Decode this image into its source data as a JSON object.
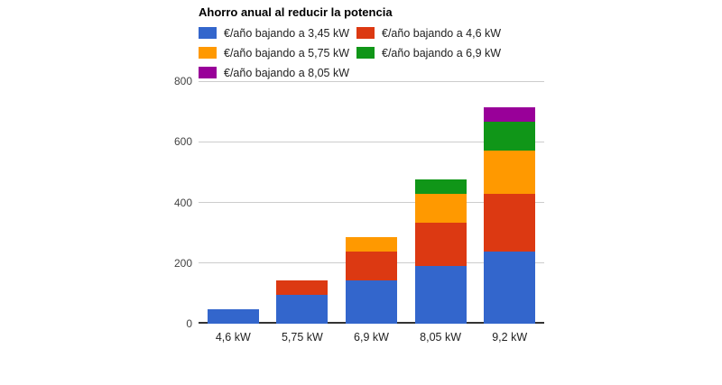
{
  "chart_data": {
    "type": "bar",
    "stacked": true,
    "title": "Ahorro anual al reducir la potencia",
    "categories": [
      "4,6 kW",
      "5,75 kW",
      "6,9 kW",
      "8,05 kW",
      "9,2 kW"
    ],
    "series": [
      {
        "name": "€/año bajando a 3,45 kW",
        "color": "#3366CC",
        "values": [
          47.6,
          95.2,
          142.8,
          190.4,
          238.0
        ]
      },
      {
        "name": "€/año bajando a 4,6 kW",
        "color": "#DC3912",
        "values": [
          0,
          47.6,
          95.2,
          142.8,
          190.4
        ]
      },
      {
        "name": "€/año bajando a 5,75 kW",
        "color": "#FF9900",
        "values": [
          0,
          0,
          47.6,
          95.2,
          142.8
        ]
      },
      {
        "name": "€/año bajando a 6,9 kW",
        "color": "#109618",
        "values": [
          0,
          0,
          0,
          47.6,
          95.2
        ]
      },
      {
        "name": "€/año bajando a 8,05 kW",
        "color": "#990099",
        "values": [
          0,
          0,
          0,
          0,
          47.6
        ]
      }
    ],
    "xlabel": "",
    "ylabel": "",
    "ylim": [
      0,
      800
    ],
    "yticks": [
      0,
      200,
      400,
      600,
      800
    ],
    "grid": true,
    "legend_position": "top"
  },
  "colors": {
    "background": "#FFFFFF",
    "gridline": "#CCCCCC",
    "axis_baseline": "#333333",
    "ytick_label": "#444444",
    "xtick_label": "#222222",
    "legend_label": "#222222",
    "title": "#000000"
  }
}
